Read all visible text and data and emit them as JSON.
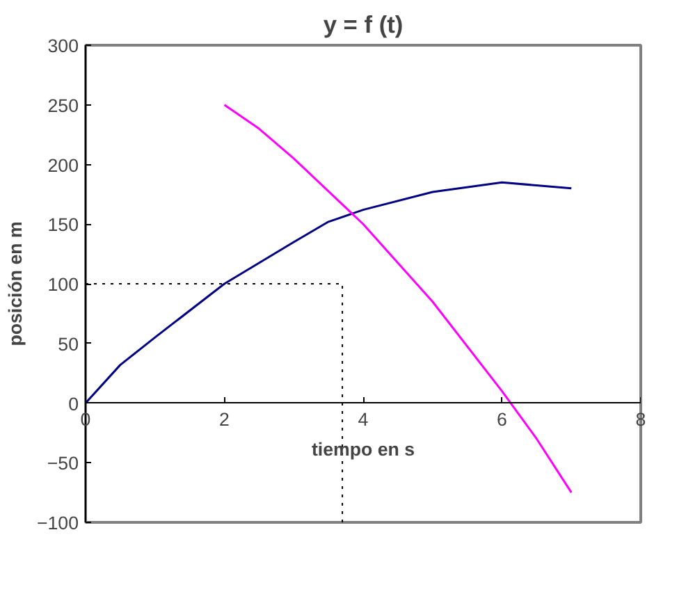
{
  "chart_data": {
    "type": "line",
    "title": "y = f (t)",
    "xlabel": "tiempo en s",
    "ylabel": "posición en m",
    "xlim": [
      0,
      8
    ],
    "ylim": [
      -100,
      300
    ],
    "xticks": [
      0,
      2,
      4,
      6,
      8
    ],
    "yticks": [
      -100,
      -50,
      0,
      50,
      100,
      150,
      200,
      250,
      300
    ],
    "grid": false,
    "line_style": "solid",
    "series": [
      {
        "color": "#000080",
        "x": [
          0,
          0.5,
          1,
          2,
          3,
          3.5,
          4,
          5,
          6,
          7
        ],
        "values": [
          0,
          32,
          55,
          100,
          135,
          152,
          162,
          177,
          185,
          180
        ]
      },
      {
        "color": "#ff00ff",
        "x": [
          2,
          2.5,
          3,
          4,
          5,
          6,
          6.5,
          7
        ],
        "values": [
          250,
          230,
          205,
          150,
          85,
          10,
          -30,
          -75
        ]
      }
    ],
    "ref_lines": [
      {
        "axis": "y",
        "value": 100,
        "color": "#000000",
        "line_style": "dotted"
      },
      {
        "axis": "x",
        "value": 3.7,
        "color": "#000000",
        "line_style": "dotted"
      }
    ]
  }
}
